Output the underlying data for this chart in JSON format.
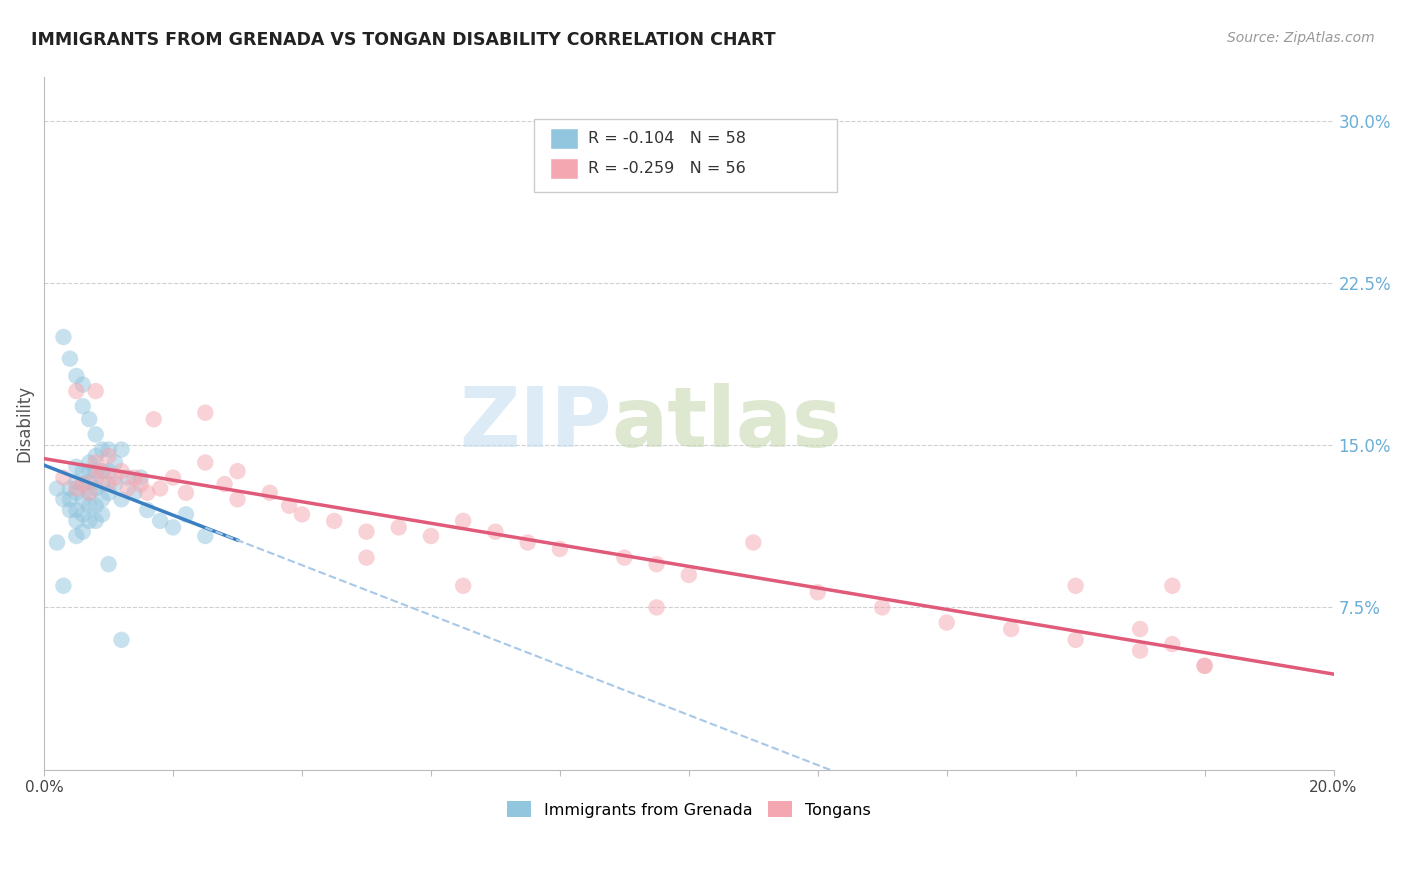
{
  "title": "IMMIGRANTS FROM GRENADA VS TONGAN DISABILITY CORRELATION CHART",
  "source": "Source: ZipAtlas.com",
  "ylabel": "Disability",
  "xmin": 0.0,
  "xmax": 0.2,
  "ymin": 0.0,
  "ymax": 0.32,
  "yticks_right": [
    0.075,
    0.15,
    0.225,
    0.3
  ],
  "ytick_labels_right": [
    "7.5%",
    "15.0%",
    "22.5%",
    "30.0%"
  ],
  "legend_r1": "R = -0.104",
  "legend_n1": "N = 58",
  "legend_r2": "R = -0.259",
  "legend_n2": "N = 56",
  "label1": "Immigrants from Grenada",
  "label2": "Tongans",
  "color_blue": "#92c5de",
  "color_pink": "#f4a7b0",
  "color_line_blue": "#3a7fc1",
  "color_line_pink": "#e05a7a",
  "color_dashed": "#a8c8e8",
  "watermark_zip": "ZIP",
  "watermark_atlas": "atlas",
  "blue_x": [
    0.002,
    0.002,
    0.003,
    0.003,
    0.004,
    0.004,
    0.004,
    0.005,
    0.005,
    0.005,
    0.005,
    0.005,
    0.005,
    0.006,
    0.006,
    0.006,
    0.006,
    0.006,
    0.007,
    0.007,
    0.007,
    0.007,
    0.007,
    0.007,
    0.008,
    0.008,
    0.008,
    0.008,
    0.008,
    0.009,
    0.009,
    0.009,
    0.009,
    0.01,
    0.01,
    0.01,
    0.011,
    0.011,
    0.012,
    0.012,
    0.013,
    0.014,
    0.015,
    0.016,
    0.018,
    0.02,
    0.022,
    0.025,
    0.003,
    0.004,
    0.005,
    0.006,
    0.006,
    0.007,
    0.008,
    0.009,
    0.01,
    0.012
  ],
  "blue_y": [
    0.13,
    0.105,
    0.125,
    0.085,
    0.13,
    0.125,
    0.12,
    0.14,
    0.133,
    0.128,
    0.12,
    0.115,
    0.108,
    0.138,
    0.132,
    0.125,
    0.118,
    0.11,
    0.142,
    0.138,
    0.133,
    0.128,
    0.122,
    0.115,
    0.145,
    0.138,
    0.13,
    0.122,
    0.115,
    0.138,
    0.132,
    0.125,
    0.118,
    0.148,
    0.138,
    0.128,
    0.142,
    0.132,
    0.148,
    0.125,
    0.135,
    0.128,
    0.135,
    0.12,
    0.115,
    0.112,
    0.118,
    0.108,
    0.2,
    0.19,
    0.182,
    0.178,
    0.168,
    0.162,
    0.155,
    0.148,
    0.095,
    0.06
  ],
  "pink_x": [
    0.003,
    0.005,
    0.006,
    0.007,
    0.008,
    0.008,
    0.009,
    0.01,
    0.01,
    0.011,
    0.012,
    0.013,
    0.014,
    0.015,
    0.016,
    0.017,
    0.018,
    0.02,
    0.022,
    0.025,
    0.028,
    0.03,
    0.035,
    0.038,
    0.04,
    0.045,
    0.05,
    0.055,
    0.06,
    0.065,
    0.07,
    0.075,
    0.08,
    0.09,
    0.095,
    0.1,
    0.11,
    0.12,
    0.13,
    0.14,
    0.15,
    0.16,
    0.17,
    0.175,
    0.18,
    0.005,
    0.008,
    0.025,
    0.03,
    0.05,
    0.065,
    0.095,
    0.16,
    0.17,
    0.175,
    0.18
  ],
  "pink_y": [
    0.135,
    0.13,
    0.132,
    0.128,
    0.135,
    0.142,
    0.138,
    0.132,
    0.145,
    0.135,
    0.138,
    0.13,
    0.135,
    0.132,
    0.128,
    0.162,
    0.13,
    0.135,
    0.128,
    0.165,
    0.132,
    0.138,
    0.128,
    0.122,
    0.118,
    0.115,
    0.11,
    0.112,
    0.108,
    0.115,
    0.11,
    0.105,
    0.102,
    0.098,
    0.095,
    0.09,
    0.105,
    0.082,
    0.075,
    0.068,
    0.065,
    0.06,
    0.055,
    0.085,
    0.048,
    0.175,
    0.175,
    0.142,
    0.125,
    0.098,
    0.085,
    0.075,
    0.085,
    0.065,
    0.058,
    0.048
  ]
}
